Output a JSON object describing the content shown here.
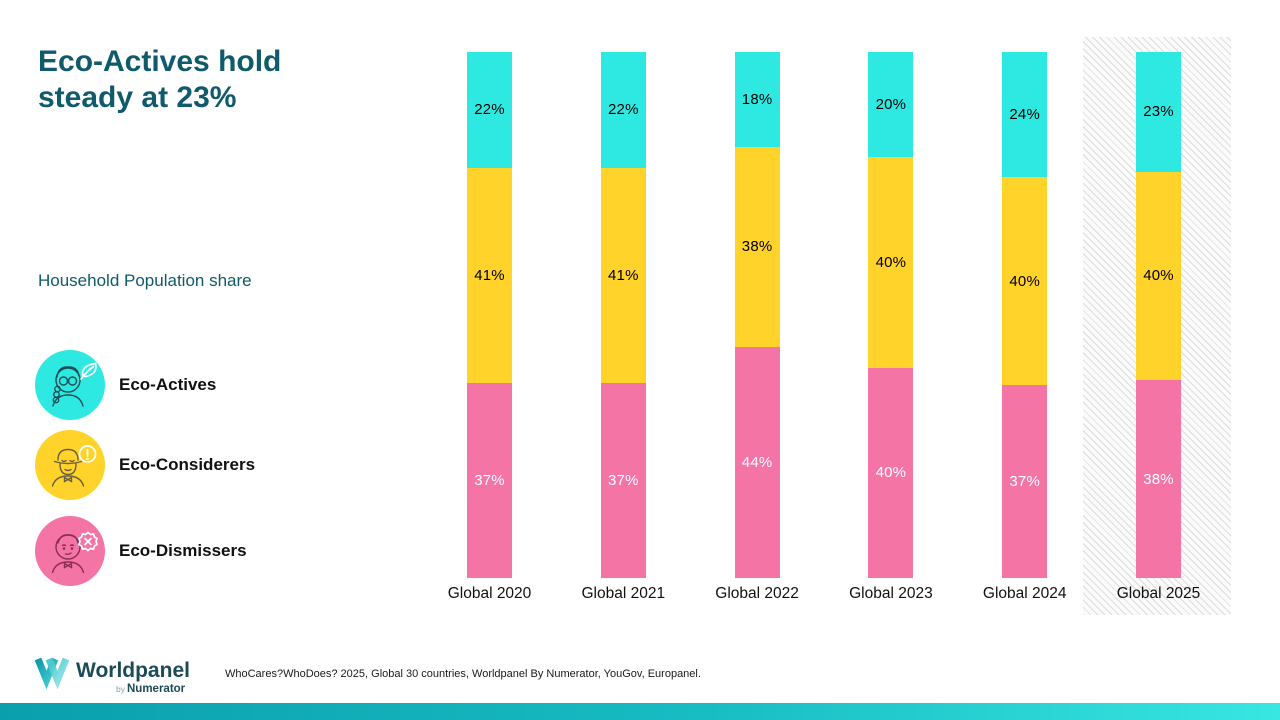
{
  "header": {
    "title_line1": "Eco-Actives hold",
    "title_line2": "steady at 23%",
    "subtitle": "Household Population share",
    "title_color": "#0f5a6b"
  },
  "legend": {
    "items": [
      {
        "label": "Eco-Actives",
        "color": "#2ee9e2",
        "icon": "person-with-leaf-icon"
      },
      {
        "label": "Eco-Considerers",
        "color": "#ffd32a",
        "icon": "person-with-exclamation-icon"
      },
      {
        "label": "Eco-Dismissers",
        "color": "#f475a5",
        "icon": "person-with-cross-icon"
      }
    ]
  },
  "chart_data": {
    "type": "bar",
    "stacked": true,
    "categories": [
      "Global 2020",
      "Global 2021",
      "Global 2022",
      "Global 2023",
      "Global 2024",
      "Global 2025"
    ],
    "series": [
      {
        "name": "Eco-Actives",
        "color": "#2ee9e2",
        "label_color": "#000000",
        "values": [
          22,
          22,
          18,
          20,
          24,
          23
        ]
      },
      {
        "name": "Eco-Considerers",
        "color": "#ffd32a",
        "label_color": "#000000",
        "values": [
          41,
          41,
          38,
          40,
          40,
          40
        ]
      },
      {
        "name": "Eco-Dismissers",
        "color": "#f475a5",
        "label_color": "#ffffff",
        "values": [
          37,
          37,
          44,
          40,
          37,
          38
        ]
      }
    ],
    "value_suffix": "%",
    "segment_order_top_to_bottom": [
      "Eco-Actives",
      "Eco-Considerers",
      "Eco-Dismissers"
    ],
    "highlight_category": "Global 2025",
    "highlight_style": "diagonal-hatch-background",
    "ylim": [
      0,
      100
    ],
    "grid": false,
    "legend_position": "left"
  },
  "footer": {
    "logo_brand": "Worldpanel",
    "logo_byline_prefix": "by",
    "logo_byline_brand": "Numerator",
    "source": "WhoCares?WhoDoes? 2025, Global 30 countries, Worldpanel By Numerator, YouGov, Europanel."
  },
  "colors": {
    "accent_teal_dark": "#0f5a6b",
    "bottom_bar_gradient_start": "#0a9fad",
    "bottom_bar_gradient_end": "#38e6e2",
    "hatch_line": "#dddddd"
  }
}
